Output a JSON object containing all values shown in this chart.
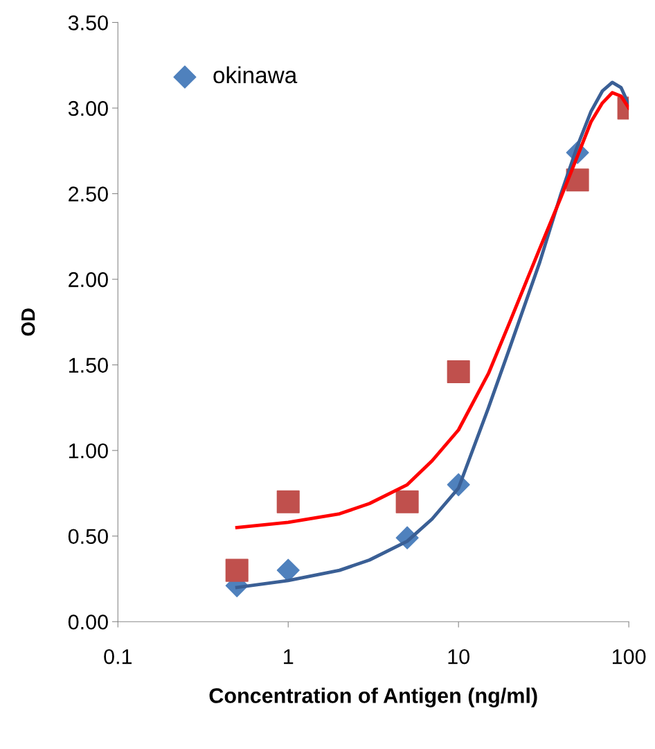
{
  "chart_data": {
    "type": "scatter",
    "xlabel": "Concentration of Antigen (ng/ml)",
    "ylabel": "OD",
    "log": "x",
    "grid": false,
    "legend": "top left",
    "xlim": [
      0.1,
      100
    ],
    "xticks": [
      0.1,
      1,
      10,
      100
    ],
    "ylim": [
      0,
      3.5
    ],
    "yticks": [
      {
        "value": 0,
        "label": "0.00"
      },
      {
        "value": 0.5,
        "label": "0.50"
      },
      {
        "value": 1,
        "label": "1.00"
      },
      {
        "value": 1.5,
        "label": "1.50"
      },
      {
        "value": 2,
        "label": "2.00"
      },
      {
        "value": 2.5,
        "label": "2.50"
      },
      {
        "value": 3,
        "label": "3.00"
      },
      {
        "value": 3.5,
        "label": "3.50"
      }
    ],
    "series": [
      {
        "type": "line",
        "color": "#3a5f95",
        "marker": "none",
        "x": [
          0.5,
          1,
          2,
          3,
          5,
          7,
          10,
          15,
          20,
          30,
          40,
          50,
          60,
          70,
          80,
          90,
          100
        ],
        "values": [
          0.2,
          0.24,
          0.3,
          0.36,
          0.47,
          0.6,
          0.78,
          1.25,
          1.6,
          2.1,
          2.5,
          2.78,
          2.98,
          3.1,
          3.15,
          3.12,
          3.02
        ]
      },
      {
        "type": "line",
        "color": "#ff0000",
        "marker": "none",
        "x": [
          0.5,
          1,
          2,
          3,
          5,
          7,
          10,
          15,
          20,
          30,
          40,
          50,
          60,
          70,
          80,
          90,
          100
        ],
        "values": [
          0.55,
          0.58,
          0.63,
          0.69,
          0.8,
          0.94,
          1.12,
          1.45,
          1.75,
          2.18,
          2.48,
          2.72,
          2.92,
          3.03,
          3.09,
          3.07,
          3.0
        ]
      },
      {
        "name": "okinawa",
        "color": "#4f81bd",
        "marker": "diamond",
        "x": [
          0.5,
          1,
          5,
          10,
          50
        ],
        "values": [
          0.21,
          0.3,
          0.49,
          0.8,
          2.74
        ]
      },
      {
        "color": "#c0504d",
        "marker": "square",
        "x": [
          0.5,
          1,
          5,
          10,
          50,
          100
        ],
        "values": [
          0.3,
          0.7,
          0.7,
          1.46,
          2.58,
          3.0
        ]
      }
    ]
  }
}
